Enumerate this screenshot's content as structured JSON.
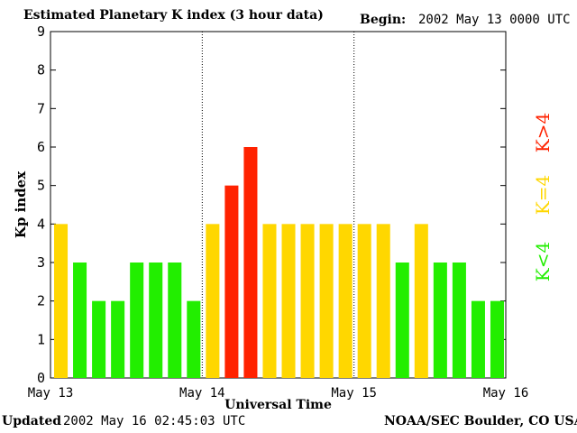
{
  "header": {
    "title": "Estimated Planetary K index (3 hour data)",
    "begin_label": "Begin:",
    "begin_value": "2002 May 13 0000 UTC"
  },
  "footer": {
    "updated_label": "Updated",
    "updated_value": "2002 May 16 02:45:03 UTC",
    "source": "NOAA/SEC Boulder, CO USA"
  },
  "colors": {
    "low": "#22ee00",
    "moderate": "#ffd700",
    "high": "#ff2200"
  },
  "legend": [
    {
      "label": "K>4",
      "color": "#ff2200"
    },
    {
      "label": "K=4",
      "color": "#ffd700"
    },
    {
      "label": "K<4",
      "color": "#22ee00"
    }
  ],
  "chart_data": {
    "type": "bar",
    "title": "Estimated Planetary K index (3 hour data)",
    "xlabel": "Universal Time",
    "ylabel": "Kp index",
    "ylim": [
      0,
      9
    ],
    "yticks": [
      "0",
      "1",
      "2",
      "3",
      "4",
      "5",
      "6",
      "7",
      "8",
      "9"
    ],
    "xticks": [
      "May 13",
      "May 14",
      "May 15",
      "May 16"
    ],
    "day_separators": true,
    "values": [
      4,
      3,
      2,
      2,
      3,
      3,
      3,
      2,
      4,
      5,
      6,
      4,
      4,
      4,
      4,
      4,
      4,
      4,
      3,
      4,
      3,
      3,
      2,
      2
    ]
  }
}
